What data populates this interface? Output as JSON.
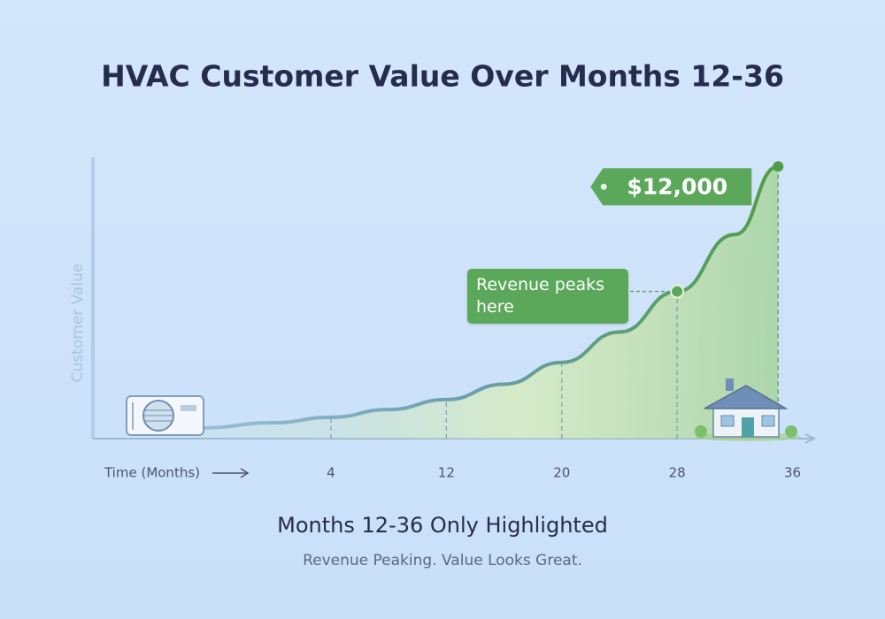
{
  "chart_data": {
    "type": "line",
    "title": "HVAC Customer Value Over Months 12-36",
    "x_label": "Time (Months)",
    "y_label": "Customer Value",
    "subtitle": "Months 12-36 Only Highlighted",
    "caption": "Revenue Peaking. Value Looks Great.",
    "x": [
      -5,
      0,
      4,
      8,
      12,
      16,
      20,
      24,
      28,
      32,
      35
    ],
    "series": [
      {
        "color": "#4f9e46",
        "values": [
          470,
          700,
          940,
          1280,
          1720,
          2400,
          3360,
          4700,
          6490,
          9000,
          12000
        ],
        "value_labels": [
          null,
          null,
          null,
          null,
          null,
          null,
          null,
          null,
          null,
          null,
          "$12,000"
        ]
      }
    ],
    "xlim": [
      -12.5,
      37.5
    ],
    "xticks": [
      4,
      12,
      20,
      28,
      36
    ],
    "ylim": [
      0,
      12400
    ],
    "annotations": [
      {
        "text": "Revenue peaks here",
        "x": 28
      }
    ]
  }
}
